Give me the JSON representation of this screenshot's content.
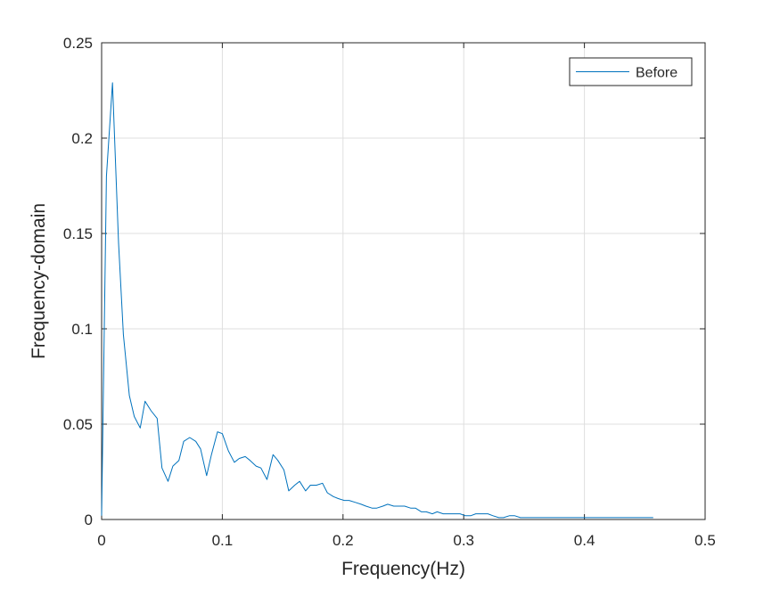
{
  "chart_data": {
    "type": "line",
    "xlabel": "Frequency(Hz)",
    "ylabel": "Frequency-domain",
    "xlim": [
      0,
      0.5
    ],
    "ylim": [
      0,
      0.25
    ],
    "grid": true,
    "legend_position": "top-right",
    "x_ticks": [
      "0",
      "0.1",
      "0.2",
      "0.3",
      "0.4",
      "0.5"
    ],
    "y_ticks": [
      "0",
      "0.05",
      "0.1",
      "0.15",
      "0.2",
      "0.25"
    ],
    "x_tick_values": [
      0,
      0.1,
      0.2,
      0.3,
      0.4,
      0.5
    ],
    "y_tick_values": [
      0,
      0.05,
      0.1,
      0.15,
      0.2,
      0.25
    ],
    "series": [
      {
        "name": "Before",
        "color": "#0072BD",
        "x": [
          0,
          0.004,
          0.009,
          0.014,
          0.018,
          0.023,
          0.027,
          0.032,
          0.036,
          0.041,
          0.046,
          0.05,
          0.055,
          0.059,
          0.064,
          0.068,
          0.073,
          0.078,
          0.082,
          0.087,
          0.091,
          0.096,
          0.1,
          0.105,
          0.11,
          0.114,
          0.119,
          0.123,
          0.128,
          0.132,
          0.137,
          0.142,
          0.146,
          0.151,
          0.155,
          0.16,
          0.164,
          0.169,
          0.173,
          0.178,
          0.183,
          0.187,
          0.192,
          0.196,
          0.201,
          0.205,
          0.21,
          0.215,
          0.219,
          0.224,
          0.228,
          0.233,
          0.237,
          0.242,
          0.246,
          0.251,
          0.256,
          0.26,
          0.265,
          0.269,
          0.274,
          0.278,
          0.283,
          0.288,
          0.292,
          0.297,
          0.301,
          0.306,
          0.31,
          0.315,
          0.32,
          0.324,
          0.329,
          0.333,
          0.338,
          0.342,
          0.347,
          0.352,
          0.356,
          0.361,
          0.365,
          0.37,
          0.374,
          0.379,
          0.384,
          0.388,
          0.393,
          0.397,
          0.402,
          0.406,
          0.411,
          0.416,
          0.42,
          0.425,
          0.429,
          0.434,
          0.438,
          0.443,
          0.448,
          0.452,
          0.457
        ],
        "y": [
          0.002,
          0.18,
          0.229,
          0.145,
          0.097,
          0.065,
          0.054,
          0.048,
          0.062,
          0.057,
          0.053,
          0.027,
          0.02,
          0.028,
          0.031,
          0.041,
          0.043,
          0.041,
          0.037,
          0.023,
          0.034,
          0.046,
          0.045,
          0.036,
          0.03,
          0.032,
          0.033,
          0.031,
          0.028,
          0.027,
          0.021,
          0.034,
          0.031,
          0.026,
          0.015,
          0.018,
          0.02,
          0.015,
          0.018,
          0.018,
          0.019,
          0.014,
          0.012,
          0.011,
          0.01,
          0.01,
          0.009,
          0.008,
          0.007,
          0.006,
          0.006,
          0.007,
          0.008,
          0.007,
          0.007,
          0.007,
          0.006,
          0.006,
          0.004,
          0.004,
          0.003,
          0.004,
          0.003,
          0.003,
          0.003,
          0.003,
          0.002,
          0.002,
          0.003,
          0.003,
          0.003,
          0.002,
          0.001,
          0.001,
          0.002,
          0.002,
          0.001,
          0.001,
          0.001,
          0.001,
          0.001,
          0.001,
          0.001,
          0.001,
          0.001,
          0.001,
          0.001,
          0.001,
          0.001,
          0.001,
          0.001,
          0.001,
          0.001,
          0.001,
          0.001,
          0.001,
          0.001,
          0.001,
          0.001,
          0.001,
          0.001
        ]
      }
    ]
  }
}
